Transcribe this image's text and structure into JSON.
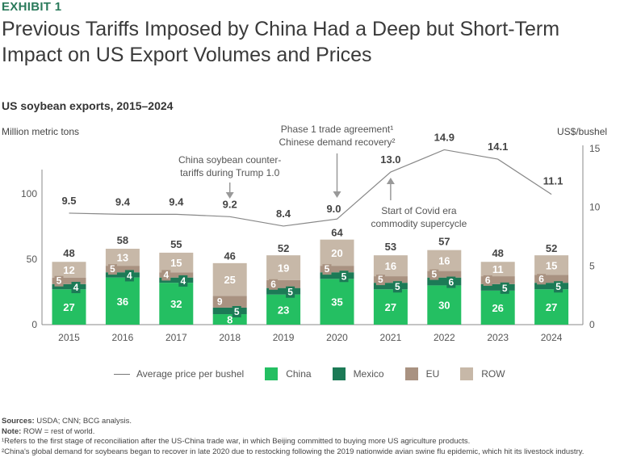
{
  "header": {
    "exhibit": "EXHIBIT 1",
    "title_line1": "Previous Tariffs Imposed by China Had a Deep but Short-Term",
    "title_line2": "Impact on US Export Volumes and Prices",
    "subtitle": "US soybean exports, 2015–2024"
  },
  "colors": {
    "accent": "#2a7a5b",
    "China": "#24bf62",
    "Mexico": "#1c7a56",
    "EU": "#a99281",
    "ROW": "#c7b8a8",
    "price_line": "#888888"
  },
  "chart_data": {
    "type": "bar",
    "stacked": true,
    "title": "US soybean exports, 2015–2024",
    "xlabel": "",
    "ylabel": "Million metric tons",
    "y2label": "US$/bushel",
    "ylim": [
      0,
      100
    ],
    "y2lim": [
      0,
      15
    ],
    "yticks": [
      0,
      50,
      100
    ],
    "y2ticks": [
      0,
      5,
      10,
      15
    ],
    "grid": false,
    "legend_position": "bottom",
    "categories": [
      "2015",
      "2016",
      "2017",
      "2018",
      "2019",
      "2020",
      "2021",
      "2022",
      "2023",
      "2024"
    ],
    "series": [
      {
        "name": "China",
        "values": [
          27,
          36,
          32,
          8,
          23,
          35,
          27,
          30,
          26,
          27
        ]
      },
      {
        "name": "Mexico",
        "values": [
          4,
          4,
          4,
          5,
          5,
          5,
          5,
          6,
          5,
          5
        ]
      },
      {
        "name": "EU",
        "values": [
          5,
          5,
          4,
          9,
          6,
          5,
          5,
          5,
          6,
          6
        ]
      },
      {
        "name": "ROW",
        "values": [
          12,
          13,
          15,
          25,
          19,
          20,
          16,
          16,
          11,
          15
        ]
      }
    ],
    "totals": [
      48,
      58,
      55,
      46,
      52,
      64,
      53,
      57,
      48,
      52
    ],
    "line_series": {
      "name": "Average price per bushel",
      "axis": "right",
      "values": [
        9.5,
        9.4,
        9.4,
        9.2,
        8.4,
        9.0,
        13.0,
        14.9,
        14.1,
        11.1
      ],
      "labels": [
        "9.5",
        "9.4",
        "9.4",
        "9.2",
        "8.4",
        "9.0",
        "13.0",
        "14.9",
        "14.1",
        "11.1"
      ]
    },
    "annotations": [
      {
        "category": "2018",
        "direction": "down",
        "line1": "China soybean counter-",
        "line2": "tariffs during Trump 1.0"
      },
      {
        "category": "2020",
        "direction": "down",
        "line1": "Phase 1 trade agreement¹",
        "line2": "Chinese demand recovery²"
      },
      {
        "category": "2021",
        "direction": "up",
        "line1": "Start of Covid era",
        "line2": "commodity supercycle"
      }
    ]
  },
  "legend": {
    "line_label": "Average price per bushel",
    "items": [
      "China",
      "Mexico",
      "EU",
      "ROW"
    ]
  },
  "footnotes": {
    "sources_label": "Sources:",
    "sources_text": " USDA; CNN; BCG analysis.",
    "note_label": "Note:",
    "note_text": " ROW = rest of world.",
    "fn1": "¹Refers to the first stage of reconciliation after the US-China trade war, in which Beijing committed to buying more US agriculture products.",
    "fn2": "²China's global demand for soybeans began to recover in late 2020 due to restocking following the 2019 nationwide avian swine flu epidemic, which hit its livestock industry."
  }
}
